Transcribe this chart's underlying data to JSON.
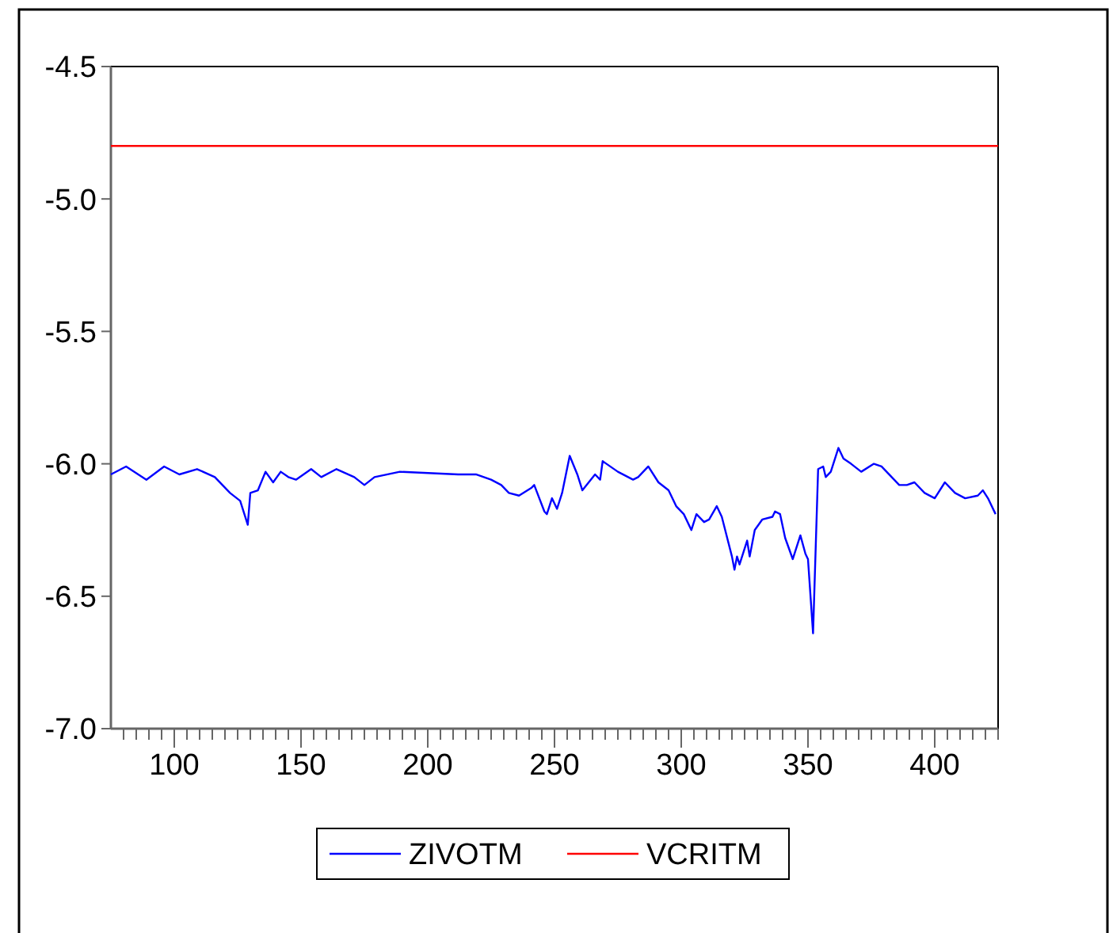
{
  "chart_data": {
    "type": "line",
    "xlim": [
      75,
      425
    ],
    "ylim": [
      -7.0,
      -4.5
    ],
    "yticks": [
      {
        "value": -4.5,
        "label": "-4.5"
      },
      {
        "value": -5,
        "label": "-5.0"
      },
      {
        "value": -5.5,
        "label": "-5.5"
      },
      {
        "value": -6,
        "label": "-6.0"
      },
      {
        "value": -6.5,
        "label": "-6.5"
      },
      {
        "value": -7,
        "label": "-7.0"
      }
    ],
    "xticks": [
      {
        "value": 80,
        "label": null
      },
      {
        "value": 85,
        "label": null
      },
      {
        "value": 90,
        "label": null
      },
      {
        "value": 95,
        "label": null
      },
      100,
      {
        "value": 105,
        "label": null
      },
      {
        "value": 110,
        "label": null
      },
      {
        "value": 115,
        "label": null
      },
      {
        "value": 120,
        "label": null
      },
      {
        "value": 125,
        "label": null
      },
      {
        "value": 130,
        "label": null
      },
      {
        "value": 135,
        "label": null
      },
      {
        "value": 140,
        "label": null
      },
      {
        "value": 145,
        "label": null
      },
      150,
      {
        "value": 155,
        "label": null
      },
      {
        "value": 160,
        "label": null
      },
      {
        "value": 165,
        "label": null
      },
      {
        "value": 170,
        "label": null
      },
      {
        "value": 175,
        "label": null
      },
      {
        "value": 180,
        "label": null
      },
      {
        "value": 185,
        "label": null
      },
      {
        "value": 190,
        "label": null
      },
      {
        "value": 195,
        "label": null
      },
      200,
      {
        "value": 205,
        "label": null
      },
      {
        "value": 210,
        "label": null
      },
      {
        "value": 215,
        "label": null
      },
      {
        "value": 220,
        "label": null
      },
      {
        "value": 225,
        "label": null
      },
      {
        "value": 230,
        "label": null
      },
      {
        "value": 235,
        "label": null
      },
      {
        "value": 240,
        "label": null
      },
      {
        "value": 245,
        "label": null
      },
      250,
      {
        "value": 255,
        "label": null
      },
      {
        "value": 260,
        "label": null
      },
      {
        "value": 265,
        "label": null
      },
      {
        "value": 270,
        "label": null
      },
      {
        "value": 275,
        "label": null
      },
      {
        "value": 280,
        "label": null
      },
      {
        "value": 285,
        "label": null
      },
      {
        "value": 290,
        "label": null
      },
      {
        "value": 295,
        "label": null
      },
      300,
      {
        "value": 305,
        "label": null
      },
      {
        "value": 310,
        "label": null
      },
      {
        "value": 315,
        "label": null
      },
      {
        "value": 320,
        "label": null
      },
      {
        "value": 325,
        "label": null
      },
      {
        "value": 330,
        "label": null
      },
      {
        "value": 335,
        "label": null
      },
      {
        "value": 340,
        "label": null
      },
      {
        "value": 345,
        "label": null
      },
      350,
      {
        "value": 355,
        "label": null
      },
      {
        "value": 360,
        "label": null
      },
      {
        "value": 365,
        "label": null
      },
      {
        "value": 370,
        "label": null
      },
      {
        "value": 375,
        "label": null
      },
      {
        "value": 380,
        "label": null
      },
      {
        "value": 385,
        "label": null
      },
      {
        "value": 390,
        "label": null
      },
      {
        "value": 395,
        "label": null
      },
      400,
      {
        "value": 405,
        "label": null
      },
      {
        "value": 410,
        "label": null
      },
      {
        "value": 415,
        "label": null
      },
      {
        "value": 420,
        "label": null
      },
      {
        "value": 425,
        "label": null
      }
    ],
    "legend": "bottom",
    "grid": false,
    "marker": "none",
    "line_style": "solid",
    "series": [
      {
        "name": "ZIVOTM",
        "color": "#0000ff",
        "x": [
          75,
          81,
          89,
          96,
          102,
          109,
          116,
          122,
          126,
          129,
          130,
          133,
          136,
          139,
          142,
          145,
          148,
          154,
          158,
          164,
          171,
          175,
          179,
          189,
          212,
          219,
          225,
          229,
          232,
          236,
          241,
          242,
          246,
          247,
          249,
          251,
          253,
          256,
          259,
          261,
          266,
          268,
          269,
          275,
          281,
          283,
          287,
          291,
          295,
          298,
          301,
          304,
          306,
          309,
          311,
          314,
          316,
          320,
          321,
          322,
          323,
          326,
          327,
          329,
          332,
          336,
          337,
          339,
          341,
          344,
          347,
          349,
          350,
          352,
          354,
          356,
          357,
          359,
          362,
          364,
          367,
          371,
          376,
          379,
          386,
          389,
          392,
          396,
          400,
          404,
          408,
          412,
          417,
          419,
          421,
          424
        ],
        "values": [
          -6.04,
          -6.01,
          -6.06,
          -6.01,
          -6.04,
          -6.02,
          -6.05,
          -6.11,
          -6.14,
          -6.23,
          -6.11,
          -6.1,
          -6.03,
          -6.07,
          -6.03,
          -6.05,
          -6.06,
          -6.02,
          -6.05,
          -6.02,
          -6.05,
          -6.08,
          -6.05,
          -6.03,
          -6.04,
          -6.04,
          -6.06,
          -6.08,
          -6.11,
          -6.12,
          -6.09,
          -6.08,
          -6.18,
          -6.19,
          -6.13,
          -6.17,
          -6.11,
          -5.97,
          -6.04,
          -6.1,
          -6.04,
          -6.06,
          -5.99,
          -6.03,
          -6.06,
          -6.05,
          -6.01,
          -6.07,
          -6.1,
          -6.16,
          -6.19,
          -6.25,
          -6.19,
          -6.22,
          -6.21,
          -6.16,
          -6.2,
          -6.35,
          -6.4,
          -6.35,
          -6.38,
          -6.29,
          -6.35,
          -6.25,
          -6.21,
          -6.2,
          -6.18,
          -6.19,
          -6.28,
          -6.36,
          -6.27,
          -6.34,
          -6.36,
          -6.64,
          -6.02,
          -6.01,
          -6.05,
          -6.03,
          -5.94,
          -5.98,
          -6.0,
          -6.03,
          -6.0,
          -6.01,
          -6.08,
          -6.08,
          -6.07,
          -6.11,
          -6.13,
          -6.07,
          -6.11,
          -6.13,
          -6.12,
          -6.1,
          -6.13,
          -6.19
        ]
      },
      {
        "name": "VCRITM",
        "color": "#ff0000",
        "x": [
          75,
          425
        ],
        "values": [
          -4.8,
          -4.8
        ]
      }
    ]
  }
}
